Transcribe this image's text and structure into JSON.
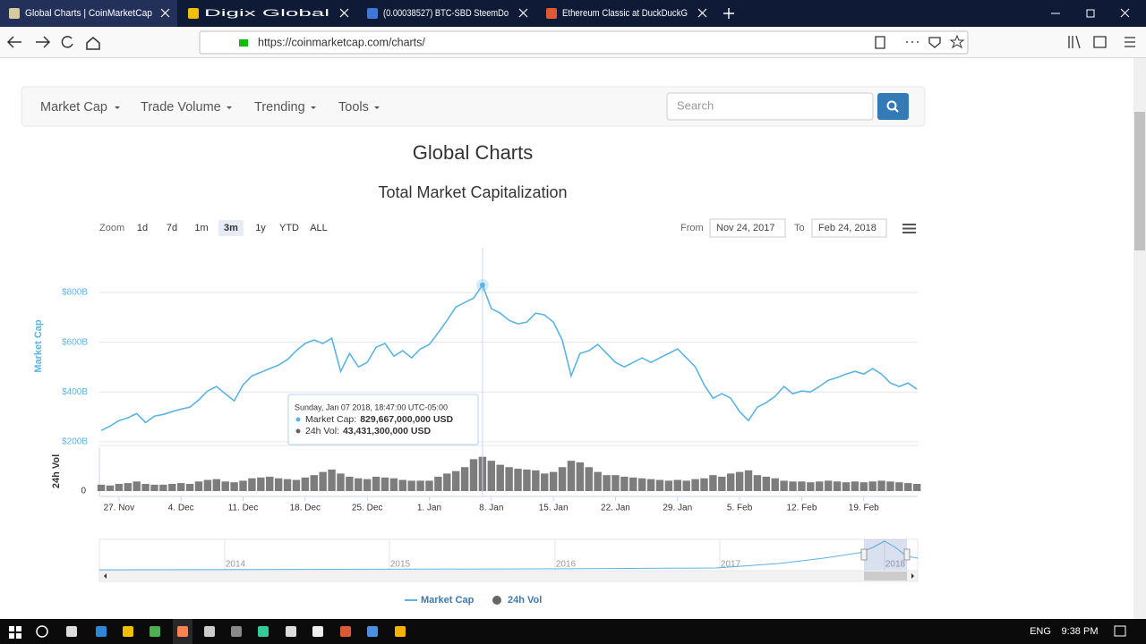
{
  "browser": {
    "tabs": [
      "Global Charts | CoinMarketCap",
      "Digix Global",
      "(0.00038527) BTC-SBD SteemDo",
      "Ethereum Classic at DuckDuckG"
    ],
    "url": "https://coinmarketcap.com/charts/"
  },
  "nav": {
    "items": [
      "Market Cap",
      "Trade Volume",
      "Trending",
      "Tools"
    ],
    "search_placeholder": "Search"
  },
  "page_title": "Global Charts",
  "chart_data": {
    "type": "line",
    "title": "Total Market Capitalization",
    "zoom_label": "Zoom",
    "zoom_buttons": [
      "1d",
      "7d",
      "1m",
      "3m",
      "1y",
      "YTD",
      "ALL"
    ],
    "zoom_selected": "3m",
    "from_label": "From",
    "from_date": "Nov 24, 2017",
    "to_label": "To",
    "to_date": "Feb 24, 2018",
    "y_label": "Market Cap",
    "y2_label": "24h Vol",
    "x": [
      "2017-11-25",
      "2017-11-26",
      "2017-11-27",
      "2017-11-28",
      "2017-11-29",
      "2017-11-30",
      "2017-12-01",
      "2017-12-02",
      "2017-12-03",
      "2017-12-04",
      "2017-12-05",
      "2017-12-06",
      "2017-12-07",
      "2017-12-08",
      "2017-12-09",
      "2017-12-10",
      "2017-12-11",
      "2017-12-12",
      "2017-12-13",
      "2017-12-14",
      "2017-12-15",
      "2017-12-16",
      "2017-12-17",
      "2017-12-18",
      "2017-12-19",
      "2017-12-20",
      "2017-12-21",
      "2017-12-22",
      "2017-12-23",
      "2017-12-24",
      "2017-12-25",
      "2017-12-26",
      "2017-12-27",
      "2017-12-28",
      "2017-12-29",
      "2017-12-30",
      "2017-12-31",
      "2018-01-01",
      "2018-01-02",
      "2018-01-03",
      "2018-01-04",
      "2018-01-05",
      "2018-01-06",
      "2018-01-07",
      "2018-01-08",
      "2018-01-09",
      "2018-01-10",
      "2018-01-11",
      "2018-01-12",
      "2018-01-13",
      "2018-01-14",
      "2018-01-15",
      "2018-01-16",
      "2018-01-17",
      "2018-01-18",
      "2018-01-19",
      "2018-01-20",
      "2018-01-21",
      "2018-01-22",
      "2018-01-23",
      "2018-01-24",
      "2018-01-25",
      "2018-01-26",
      "2018-01-27",
      "2018-01-28",
      "2018-01-29",
      "2018-01-30",
      "2018-01-31",
      "2018-02-01",
      "2018-02-02",
      "2018-02-03",
      "2018-02-04",
      "2018-02-05",
      "2018-02-06",
      "2018-02-07",
      "2018-02-08",
      "2018-02-09",
      "2018-02-10",
      "2018-02-11",
      "2018-02-12",
      "2018-02-13",
      "2018-02-14",
      "2018-02-15",
      "2018-02-16",
      "2018-02-17",
      "2018-02-18",
      "2018-02-19",
      "2018-02-20",
      "2018-02-21",
      "2018-02-22",
      "2018-02-23",
      "2018-02-24",
      "2018-02-25"
    ],
    "series": [
      {
        "name": "Market Cap",
        "color": "#5ab4e4",
        "values": [
          245000000000.0,
          263000000000.0,
          285000000000.0,
          296000000000.0,
          313000000000.0,
          277000000000.0,
          303000000000.0,
          310000000000.0,
          321000000000.0,
          331000000000.0,
          339000000000.0,
          368000000000.0,
          404000000000.0,
          422000000000.0,
          393000000000.0,
          364000000000.0,
          429000000000.0,
          465000000000.0,
          479000000000.0,
          494000000000.0,
          508000000000.0,
          530000000000.0,
          566000000000.0,
          595000000000.0,
          609000000000.0,
          595000000000.0,
          616000000000.0,
          483000000000.0,
          555000000000.0,
          501000000000.0,
          519000000000.0,
          580000000000.0,
          595000000000.0,
          544000000000.0,
          566000000000.0,
          537000000000.0,
          573000000000.0,
          591000000000.0,
          638000000000.0,
          688000000000.0,
          742000000000.0,
          760000000000.0,
          778000000000.0,
          830000000000.0,
          735000000000.0,
          717000000000.0,
          688000000000.0,
          674000000000.0,
          681000000000.0,
          717000000000.0,
          710000000000.0,
          681000000000.0,
          609000000000.0,
          465000000000.0,
          555000000000.0,
          566000000000.0,
          591000000000.0,
          555000000000.0,
          519000000000.0,
          501000000000.0,
          519000000000.0,
          537000000000.0,
          519000000000.0,
          537000000000.0,
          555000000000.0,
          573000000000.0,
          537000000000.0,
          501000000000.0,
          429000000000.0,
          375000000000.0,
          393000000000.0,
          375000000000.0,
          321000000000.0,
          285000000000.0,
          339000000000.0,
          357000000000.0,
          382000000000.0,
          422000000000.0,
          393000000000.0,
          404000000000.0,
          400000000000.0,
          422000000000.0,
          447000000000.0,
          458000000000.0,
          472000000000.0,
          483000000000.0,
          472000000000.0,
          494000000000.0,
          472000000000.0,
          436000000000.0,
          422000000000.0,
          436000000000.0,
          411000000000.0
        ]
      },
      {
        "name": "24h Vol",
        "color": "#666666",
        "type": "bar",
        "axis": "y2",
        "values": [
          8000000000.0,
          7000000000.0,
          9000000000.0,
          10000000000.0,
          12000000000.0,
          9000000000.0,
          8000000000.0,
          8000000000.0,
          9000000000.0,
          10000000000.0,
          9000000000.0,
          12000000000.0,
          14000000000.0,
          15000000000.0,
          12000000000.0,
          11000000000.0,
          13000000000.0,
          16000000000.0,
          17000000000.0,
          18000000000.0,
          16000000000.0,
          15000000000.0,
          14000000000.0,
          17000000000.0,
          20000000000.0,
          24000000000.0,
          27000000000.0,
          22000000000.0,
          18000000000.0,
          16000000000.0,
          15000000000.0,
          18000000000.0,
          17000000000.0,
          16000000000.0,
          14000000000.0,
          13000000000.0,
          13000000000.0,
          13000000000.0,
          18000000000.0,
          22000000000.0,
          25000000000.0,
          30000000000.0,
          40000000000.0,
          43000000000.0,
          38000000000.0,
          33000000000.0,
          30000000000.0,
          28000000000.0,
          27000000000.0,
          26000000000.0,
          22000000000.0,
          24000000000.0,
          30000000000.0,
          38000000000.0,
          36000000000.0,
          30000000000.0,
          24000000000.0,
          20000000000.0,
          20000000000.0,
          18000000000.0,
          17000000000.0,
          16000000000.0,
          15000000000.0,
          14000000000.0,
          13000000000.0,
          14000000000.0,
          13000000000.0,
          15000000000.0,
          16000000000.0,
          20000000000.0,
          18000000000.0,
          22000000000.0,
          24000000000.0,
          26000000000.0,
          20000000000.0,
          18000000000.0,
          16000000000.0,
          13000000000.0,
          12000000000.0,
          12000000000.0,
          11000000000.0,
          12000000000.0,
          13000000000.0,
          12000000000.0,
          11000000000.0,
          12000000000.0,
          11000000000.0,
          12000000000.0,
          13000000000.0,
          12000000000.0,
          11000000000.0,
          10000000000.0,
          9000000000.0
        ]
      }
    ],
    "xlim": [
      "2017-11-24T19:00",
      "2018-02-25T02:00"
    ],
    "xticks": [
      {
        "value": "2017-11-27",
        "label": "27. Nov"
      },
      {
        "value": "2017-12-04",
        "label": "4. Dec"
      },
      {
        "value": "2017-12-11",
        "label": "11. Dec"
      },
      {
        "value": "2017-12-18",
        "label": "18. Dec"
      },
      {
        "value": "2017-12-25",
        "label": "25. Dec"
      },
      {
        "value": "2018-01-01",
        "label": "1. Jan"
      },
      {
        "value": "2018-01-08",
        "label": "8. Jan"
      },
      {
        "value": "2018-01-15",
        "label": "15. Jan"
      },
      {
        "value": "2018-01-22",
        "label": "22. Jan"
      },
      {
        "value": "2018-01-29",
        "label": "29. Jan"
      },
      {
        "value": "2018-02-05",
        "label": "5. Feb"
      },
      {
        "value": "2018-02-12",
        "label": "12. Feb"
      },
      {
        "value": "2018-02-19",
        "label": "19. Feb"
      }
    ],
    "ylim": [
      185000000000.0,
      980000000000.0
    ],
    "yticks": [
      {
        "value": 200000000000.0,
        "label": "$200B"
      },
      {
        "value": 400000000000.0,
        "label": "$400B"
      },
      {
        "value": 600000000000.0,
        "label": "$600B"
      },
      {
        "value": 800000000000.0,
        "label": "$800B"
      }
    ],
    "y2lim": [
      0,
      55000000000.0
    ],
    "y2ticks": [
      0
    ],
    "grid": true,
    "tooltip": {
      "date": "Sunday, Jan 07 2018, 18:47:00 UTC-05:00",
      "rows": [
        {
          "label": "Market Cap:",
          "value": "829,667,000,000 USD"
        },
        {
          "label": "24h Vol:",
          "value": "43,431,300,000 USD"
        }
      ]
    },
    "navigator_labels": [
      "2014",
      "2015",
      "2016",
      "2017",
      "2018"
    ]
  },
  "taskbar": {
    "language": "ENG",
    "time": "9:38 PM"
  }
}
